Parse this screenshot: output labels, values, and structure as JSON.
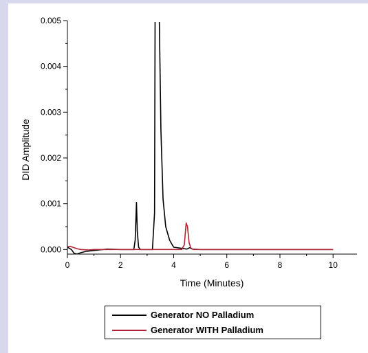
{
  "chart_data": {
    "type": "line",
    "title": "",
    "xlabel": "Time (Minutes)",
    "ylabel": "DID Amplitude",
    "xlim": [
      0,
      10.9
    ],
    "ylim": [
      -0.0001,
      0.005
    ],
    "x_ticks": [
      0,
      2,
      4,
      6,
      8,
      10
    ],
    "x_tick_labels": [
      "0",
      "2",
      "4",
      "6",
      "8",
      "10"
    ],
    "y_ticks": [
      0,
      0.001,
      0.002,
      0.003,
      0.004,
      0.005
    ],
    "y_tick_labels": [
      "0.000",
      "0.001",
      "0.002",
      "0.003",
      "0.004",
      "0.005"
    ],
    "grid": false,
    "legend_position": "bottom-center",
    "series": [
      {
        "name": "Generator NO Palladium",
        "color": "#000000",
        "x": [
          0,
          0.15,
          0.25,
          0.35,
          0.5,
          0.7,
          1.0,
          1.5,
          2.0,
          2.5,
          2.55,
          2.6,
          2.63,
          2.68,
          2.75,
          3.0,
          3.2,
          3.28,
          3.3,
          3.36,
          3.4,
          3.46,
          3.52,
          3.6,
          3.7,
          3.85,
          4.0,
          4.5,
          4.6,
          4.7,
          5.0,
          6.0,
          7.0,
          8.0,
          9.0,
          10.0
        ],
        "y": [
          5e-05,
          0.0,
          -8e-05,
          -0.0001,
          -7e-05,
          -4e-05,
          -2e-05,
          1e-05,
          0.0,
          0.0,
          0.0002,
          0.00103,
          0.0004,
          5e-05,
          0.0,
          0.0,
          0.0,
          0.0008,
          0.005,
          0.005,
          0.005,
          0.005,
          0.0026,
          0.0011,
          0.0005,
          0.0002,
          5e-05,
          1e-05,
          4e-05,
          1e-05,
          0.0,
          0.0,
          0.0,
          0.0,
          0.0,
          0.0
        ]
      },
      {
        "name": "Generator WITH Palladium",
        "color": "#b22234",
        "x": [
          0,
          0.1,
          0.2,
          0.35,
          0.5,
          0.8,
          1.0,
          2.0,
          3.0,
          4.0,
          4.3,
          4.4,
          4.47,
          4.52,
          4.58,
          4.65,
          4.75,
          5.0,
          6.0,
          7.0,
          8.0,
          9.0,
          10.0
        ],
        "y": [
          6e-05,
          7e-05,
          5e-05,
          2e-05,
          0.0,
          -1e-05,
          0.0,
          0.0,
          0.0,
          0.0,
          0.0,
          0.0001,
          0.00058,
          0.0005,
          0.00015,
          3e-05,
          0.0,
          0.0,
          0.0,
          0.0,
          0.0,
          0.0,
          0.0
        ]
      }
    ]
  }
}
